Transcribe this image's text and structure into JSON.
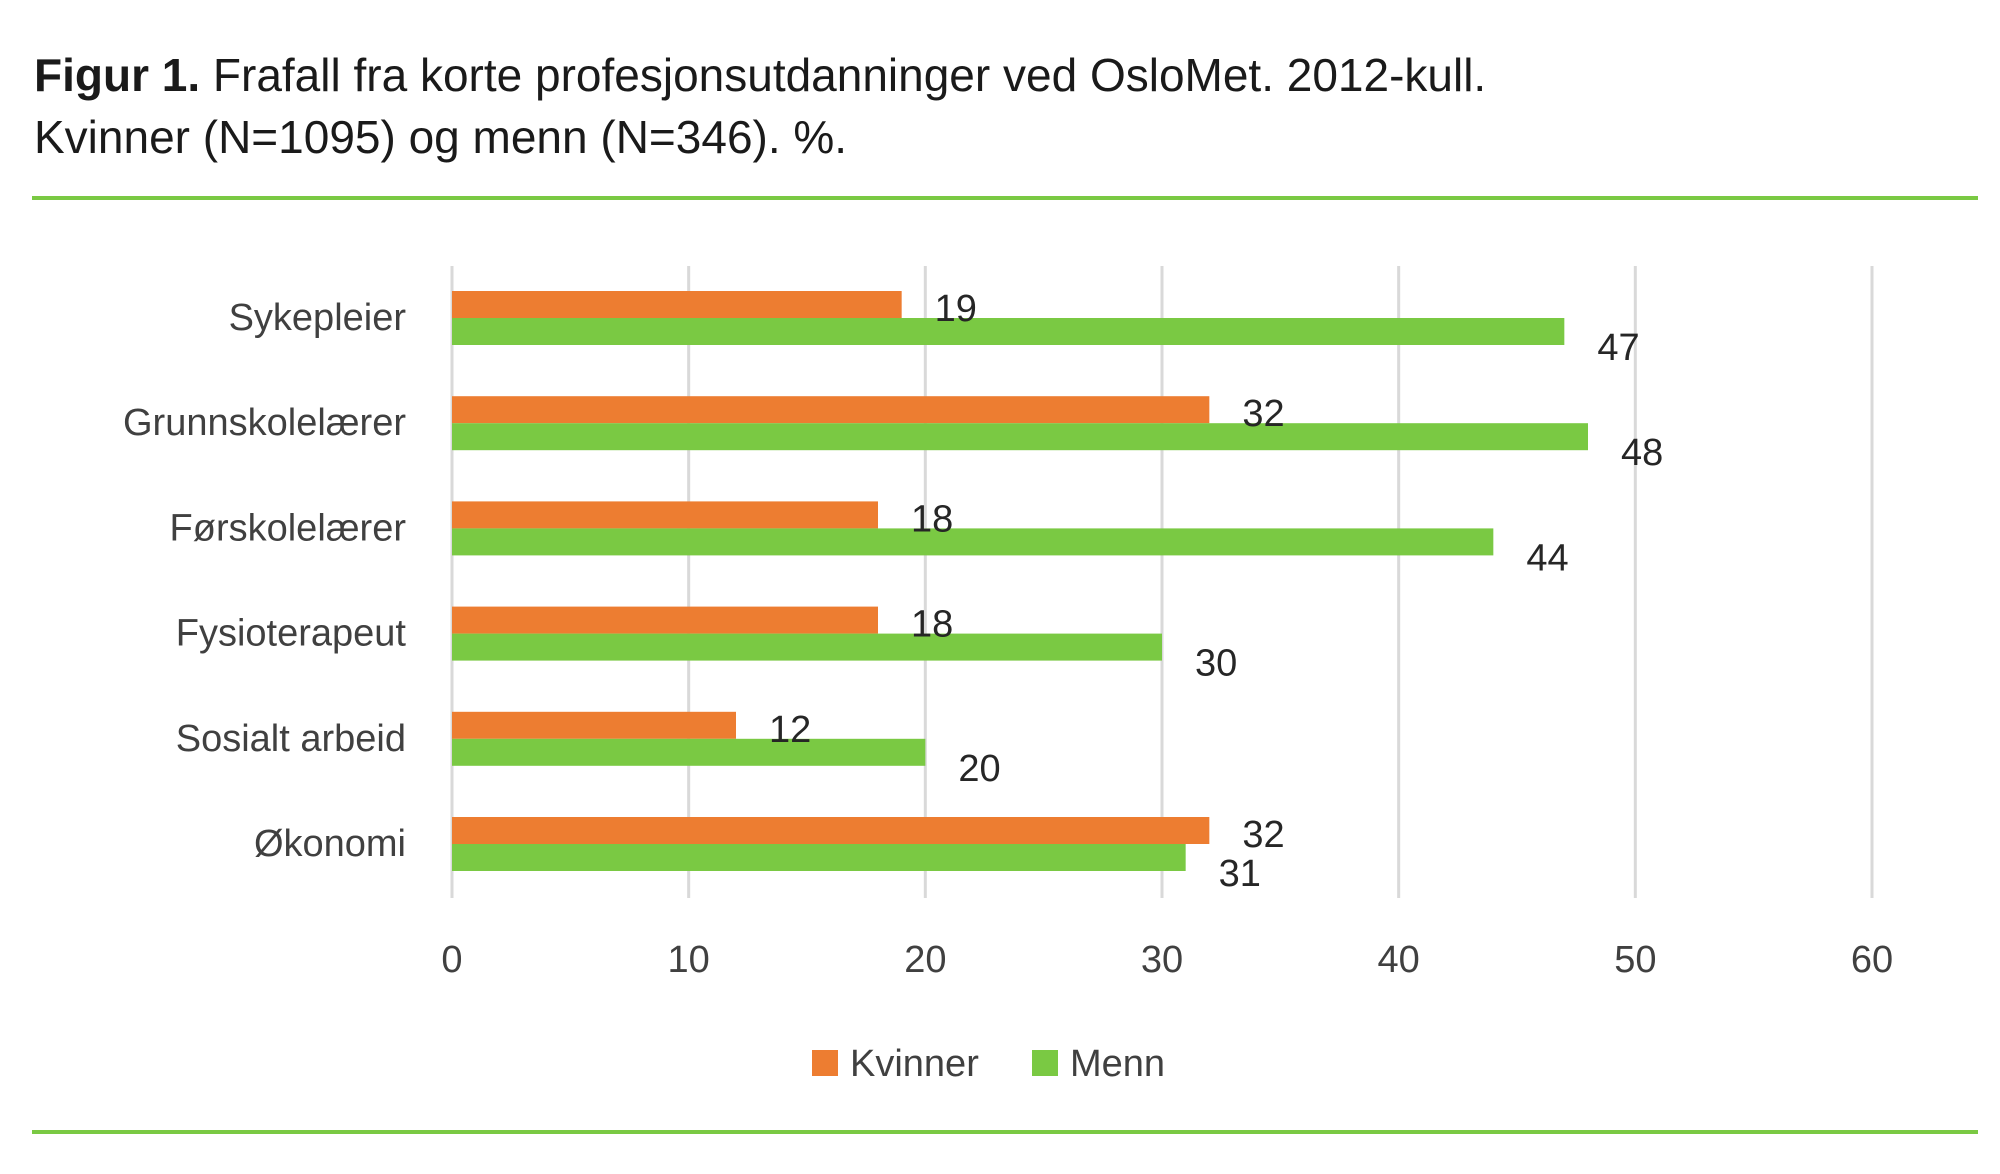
{
  "caption": {
    "label": "Figur 1.",
    "line1": "Frafall fra korte profesjonsutdanninger ved OsloMet. 2012-kull.",
    "line2": "Kvinner (N=1095) og menn (N=346). %."
  },
  "colors": {
    "kvinner": "#ed7d31",
    "menn": "#7ac943",
    "grid": "#d9d9d9",
    "rule": "#7ac943",
    "text": "#404040"
  },
  "chart_data": {
    "type": "bar",
    "orientation": "horizontal",
    "title": "Frafall fra korte profesjonsutdanninger ved OsloMet. 2012-kull.",
    "xlabel": "",
    "ylabel": "",
    "categories": [
      "Sykepleier",
      "Grunnskolelærer",
      "Førskolelærer",
      "Fysioterapeut",
      "Sosialt arbeid",
      "Økonomi"
    ],
    "series": [
      {
        "name": "Kvinner",
        "values": [
          19,
          32,
          18,
          18,
          12,
          32
        ]
      },
      {
        "name": "Menn",
        "values": [
          47,
          48,
          44,
          30,
          20,
          31
        ]
      }
    ],
    "xlim": [
      0,
      60
    ],
    "xticks": [
      0,
      10,
      20,
      30,
      40,
      50,
      60
    ],
    "grid": true,
    "legend_position": "bottom"
  }
}
